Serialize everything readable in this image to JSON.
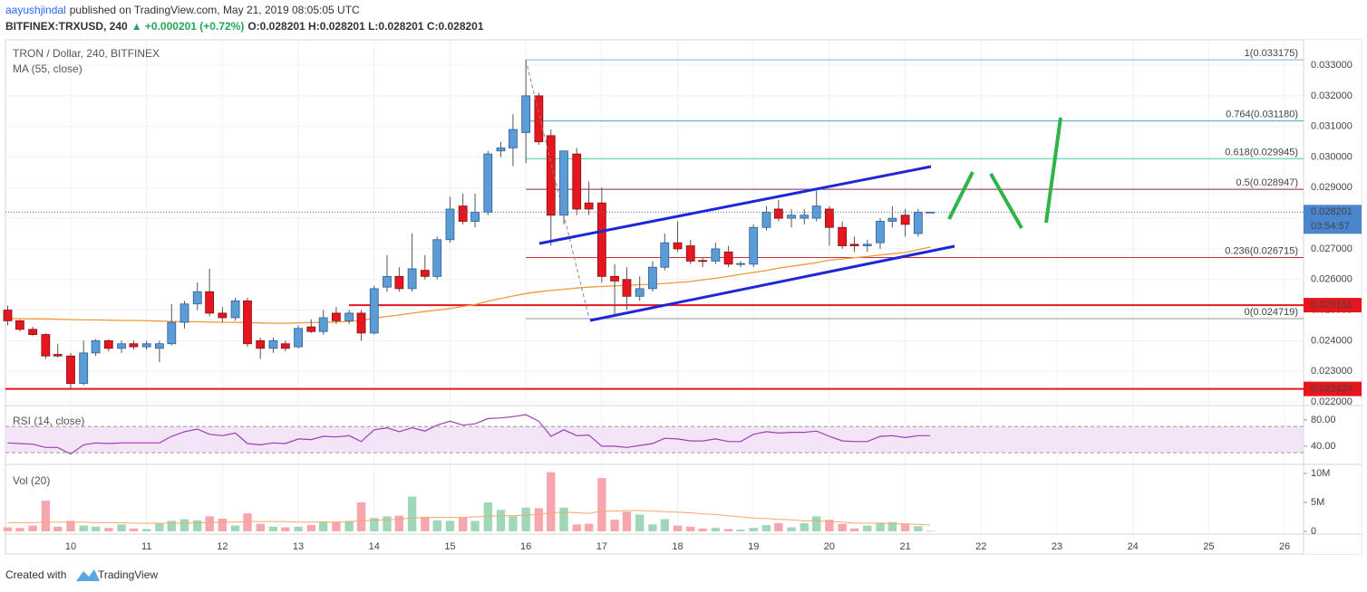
{
  "header": {
    "author": "aayushjindal",
    "published": "published on TradingView.com, May 21, 2019 08:05:05 UTC",
    "symbol": "BITFINEX:TRXUSD, 240",
    "change": "▲ +0.000201 (+0.72%)",
    "ohlc": "O:0.028201 H:0.028201 L:0.028201 C:0.028201"
  },
  "footer": {
    "created": "Created with",
    "brand": "TradingView"
  },
  "chart_data": {
    "type": "candlestick",
    "title": "TRON / Dollar, 240, BITFINEX",
    "up_color": "#5b9cd6",
    "down_color": "#e5161d",
    "grid": true,
    "x": [
      9.17,
      9.33,
      9.5,
      9.67,
      9.83,
      10,
      10.17,
      10.33,
      10.5,
      10.67,
      10.83,
      11,
      11.17,
      11.33,
      11.5,
      11.67,
      11.83,
      12,
      12.17,
      12.33,
      12.5,
      12.67,
      12.83,
      13,
      13.17,
      13.33,
      13.5,
      13.67,
      13.83,
      14,
      14.17,
      14.33,
      14.5,
      14.67,
      14.83,
      15,
      15.17,
      15.33,
      15.5,
      15.67,
      15.83,
      16,
      16.17,
      16.33,
      16.5,
      16.67,
      16.83,
      17,
      17.17,
      17.33,
      17.5,
      17.67,
      17.83,
      18,
      18.17,
      18.33,
      18.5,
      18.67,
      18.83,
      19,
      19.17,
      19.33,
      19.5,
      19.67,
      19.83,
      20,
      20.17,
      20.33,
      20.5,
      20.67,
      20.83,
      21,
      21.17,
      21.33
    ],
    "open": [
      0.025,
      0.02465,
      0.02437,
      0.0242,
      0.02355,
      0.0235,
      0.0226,
      0.0236,
      0.024,
      0.02375,
      0.0239,
      0.0238,
      0.02375,
      0.0239,
      0.0246,
      0.0252,
      0.0256,
      0.0249,
      0.02475,
      0.0253,
      0.024,
      0.02375,
      0.0239,
      0.0238,
      0.02445,
      0.0243,
      0.0249,
      0.02465,
      0.0249,
      0.02425,
      0.02575,
      0.0261,
      0.0257,
      0.0263,
      0.0261,
      0.0273,
      0.0284,
      0.0279,
      0.0282,
      0.0302,
      0.0303,
      0.0308,
      0.032,
      0.0307,
      0.0281,
      0.0301,
      0.0285,
      0.0285,
      0.0261,
      0.026,
      0.02545,
      0.0257,
      0.0264,
      0.0272,
      0.0271,
      0.02662,
      0.0266,
      0.0269,
      0.0265,
      0.0265,
      0.0277,
      0.0283,
      0.028,
      0.028,
      0.028,
      0.0283,
      0.0277,
      0.02715,
      0.0271,
      0.0272,
      0.0279,
      0.0281,
      0.0275,
      0.028201
    ],
    "high": [
      0.02515,
      0.0247,
      0.02445,
      0.02425,
      0.0239,
      0.0236,
      0.024,
      0.02405,
      0.02405,
      0.024,
      0.024,
      0.024,
      0.024,
      0.0252,
      0.0253,
      0.0259,
      0.02635,
      0.0251,
      0.0254,
      0.0254,
      0.0241,
      0.0241,
      0.024,
      0.0245,
      0.0247,
      0.025,
      0.0251,
      0.025,
      0.025,
      0.0258,
      0.0268,
      0.0264,
      0.0275,
      0.0268,
      0.0274,
      0.0287,
      0.0288,
      0.0288,
      0.0302,
      0.0305,
      0.0314,
      0.03318,
      0.0321,
      0.0309,
      0.0302,
      0.0303,
      0.0292,
      0.029,
      0.0265,
      0.0264,
      0.0261,
      0.0266,
      0.0275,
      0.0279,
      0.0273,
      0.0267,
      0.0272,
      0.0271,
      0.0266,
      0.0278,
      0.0284,
      0.0286,
      0.0283,
      0.0283,
      0.0289,
      0.0284,
      0.0279,
      0.0274,
      0.0273,
      0.028,
      0.0284,
      0.0283,
      0.0283,
      0.028201
    ],
    "low": [
      0.0245,
      0.0243,
      0.02415,
      0.0234,
      0.02345,
      0.02245,
      0.02255,
      0.0235,
      0.02365,
      0.0236,
      0.0237,
      0.0237,
      0.0233,
      0.02385,
      0.0244,
      0.025,
      0.0248,
      0.0246,
      0.02465,
      0.0238,
      0.0234,
      0.0236,
      0.02365,
      0.02375,
      0.02425,
      0.0242,
      0.02455,
      0.02455,
      0.024,
      0.0242,
      0.0256,
      0.0256,
      0.0256,
      0.026,
      0.026,
      0.0272,
      0.0278,
      0.0277,
      0.0281,
      0.03,
      0.0297,
      0.0298,
      0.0304,
      0.0271,
      0.0278,
      0.0281,
      0.0281,
      0.0259,
      0.0248,
      0.025,
      0.0253,
      0.0256,
      0.0263,
      0.0269,
      0.0265,
      0.0264,
      0.0265,
      0.0264,
      0.0264,
      0.0264,
      0.0276,
      0.0279,
      0.0277,
      0.0278,
      0.0279,
      0.0271,
      0.027,
      0.0269,
      0.0269,
      0.027,
      0.0277,
      0.0274,
      0.0274,
      0.028201
    ],
    "close": [
      0.02465,
      0.02437,
      0.0242,
      0.0235,
      0.0235,
      0.0226,
      0.0236,
      0.024,
      0.02375,
      0.0239,
      0.0238,
      0.0239,
      0.0239,
      0.0246,
      0.0252,
      0.0256,
      0.0249,
      0.02475,
      0.0253,
      0.0239,
      0.02375,
      0.024,
      0.02375,
      0.0244,
      0.0243,
      0.02475,
      0.02465,
      0.0249,
      0.02425,
      0.0257,
      0.0261,
      0.0257,
      0.02635,
      0.0261,
      0.0273,
      0.0283,
      0.0279,
      0.0282,
      0.0301,
      0.0303,
      0.0309,
      0.032,
      0.0305,
      0.0281,
      0.0302,
      0.0283,
      0.0283,
      0.0261,
      0.02595,
      0.02545,
      0.0257,
      0.0264,
      0.0272,
      0.027,
      0.0266,
      0.0266,
      0.027,
      0.0265,
      0.02652,
      0.0277,
      0.0282,
      0.028,
      0.0281,
      0.0281,
      0.0284,
      0.0277,
      0.0271,
      0.0271,
      0.02715,
      0.0279,
      0.028,
      0.0278,
      0.0282,
      0.028201
    ],
    "xlim": [
      9.14,
      26.25
    ],
    "xticks": [
      10,
      11,
      12,
      13,
      14,
      15,
      16,
      17,
      18,
      19,
      20,
      21,
      22,
      23,
      24,
      25,
      26
    ],
    "ylim": [
      0.02194,
      0.03383
    ],
    "yticks": [
      {
        "value": 0.022,
        "label": "0.022000"
      },
      {
        "value": 0.023,
        "label": "0.023000"
      },
      {
        "value": 0.024,
        "label": "0.024000"
      },
      {
        "value": 0.025,
        "label": "0.025000"
      },
      {
        "value": 0.026,
        "label": "0.026000"
      },
      {
        "value": 0.027,
        "label": "0.027000"
      },
      {
        "value": 0.028,
        "label": "0.028000"
      },
      {
        "value": 0.029,
        "label": "0.029000"
      },
      {
        "value": 0.03,
        "label": "0.030000"
      },
      {
        "value": 0.031,
        "label": "0.031000"
      },
      {
        "value": 0.032,
        "label": "0.032000"
      },
      {
        "value": 0.033,
        "label": "0.033000"
      }
    ],
    "countdown": "03:54:57",
    "levels": [
      {
        "value": 0.025161,
        "color": "#e5161d"
      },
      {
        "value": 0.022424,
        "color": "#e5161d"
      }
    ],
    "fib": [
      {
        "label": "1(0.033175)",
        "value": 0.033175,
        "color": "#7fb3d5"
      },
      {
        "label": "0.764(0.031180)",
        "value": 0.03118,
        "color": "#3fa7d6"
      },
      {
        "label": "0.618(0.029945)",
        "value": 0.029945,
        "color": "#4cd0a0"
      },
      {
        "label": "0.5(0.028947)",
        "value": 0.028947,
        "color": "#8b2846"
      },
      {
        "label": "0.236(0.026715)",
        "value": 0.026715,
        "color": "#c0303d"
      },
      {
        "label": "0(0.024719)",
        "value": 0.024719,
        "color": "#9a9a9a"
      }
    ],
    "ma": {
      "name": "MA (55, close)",
      "color": "#f2993a",
      "values": [
        0.02472,
        0.02472,
        0.02471,
        0.02471,
        0.0247,
        0.02469,
        0.02468,
        0.02468,
        0.02467,
        0.02466,
        0.02466,
        0.02465,
        0.02464,
        0.02463,
        0.02462,
        0.02462,
        0.02461,
        0.0246,
        0.0246,
        0.02459,
        0.02458,
        0.02457,
        0.02457,
        0.02458,
        0.02459,
        0.0246,
        0.02461,
        0.02463,
        0.02466,
        0.02474,
        0.02479,
        0.02484,
        0.0249,
        0.02495,
        0.025,
        0.02505,
        0.02512,
        0.02518,
        0.02529,
        0.02538,
        0.02546,
        0.02554,
        0.0256,
        0.02564,
        0.02568,
        0.02572,
        0.02575,
        0.02577,
        0.02579,
        0.02581,
        0.02583,
        0.02584,
        0.02587,
        0.0259,
        0.02593,
        0.02599,
        0.02604,
        0.0261,
        0.02617,
        0.02623,
        0.02629,
        0.02637,
        0.02643,
        0.02649,
        0.02655,
        0.02663,
        0.02667,
        0.02671,
        0.02675,
        0.0268,
        0.02684,
        0.02688,
        0.02697,
        0.02706
      ]
    },
    "rsi": {
      "name": "RSI (14, close)",
      "color": "#9b3fb5",
      "band": [
        30,
        70
      ],
      "ylim": [
        15,
        95
      ],
      "yticks": [
        {
          "value": 80,
          "label": "80.00"
        },
        {
          "value": 40,
          "label": "40.00"
        }
      ],
      "values": [
        45,
        44,
        43,
        38,
        38,
        28,
        42,
        45,
        44,
        45,
        45,
        45,
        45,
        55,
        62,
        66,
        58,
        56,
        60,
        44,
        42,
        45,
        44,
        51,
        50,
        55,
        54,
        56,
        47,
        65,
        68,
        62,
        68,
        63,
        72,
        78,
        72,
        74,
        82,
        83,
        85,
        88,
        78,
        55,
        65,
        56,
        57,
        40,
        40,
        38,
        41,
        44,
        52,
        51,
        48,
        48,
        51,
        47,
        47,
        58,
        62,
        60,
        61,
        61,
        63,
        55,
        48,
        47,
        47,
        55,
        56,
        53,
        56,
        56
      ]
    },
    "volume": {
      "name": "Vol (20)",
      "up_color": "#9fd8b8",
      "down_color": "#f6a6ac",
      "ma_color": "#f5a86a",
      "ylim": [
        -0.47,
        11.25
      ],
      "yticks": [
        {
          "value": 10,
          "label": "10M"
        },
        {
          "value": 5,
          "label": "5M"
        },
        0
      ],
      "values": [
        0.7,
        0.6,
        1.0,
        5.3,
        0.8,
        1.8,
        1.0,
        0.8,
        0.6,
        1.2,
        0.5,
        0.4,
        1.3,
        1.8,
        2.1,
        1.9,
        2.6,
        2.2,
        1.0,
        3.1,
        1.3,
        0.8,
        0.7,
        0.8,
        1.1,
        1.7,
        1.6,
        1.8,
        5.0,
        2.3,
        2.6,
        2.7,
        6.0,
        2.5,
        1.9,
        1.8,
        2.4,
        1.8,
        5.0,
        3.7,
        2.6,
        4.1,
        4.0,
        10.2,
        4.1,
        1.2,
        1.3,
        9.2,
        2.0,
        3.4,
        2.9,
        1.2,
        2.1,
        1.0,
        0.8,
        0.5,
        0.6,
        0.4,
        0.3,
        0.6,
        1.1,
        1.4,
        0.7,
        1.4,
        2.6,
        2.0,
        1.3,
        0.5,
        1.0,
        1.5,
        1.6,
        1.3,
        0.9,
        0.1
      ],
      "ma": [
        1.5,
        1.5,
        1.5,
        1.6,
        1.6,
        1.6,
        1.6,
        1.5,
        1.5,
        1.5,
        1.4,
        1.4,
        1.4,
        1.4,
        1.4,
        1.5,
        1.5,
        1.6,
        1.6,
        1.7,
        1.7,
        1.7,
        1.7,
        1.6,
        1.6,
        1.6,
        1.6,
        1.7,
        1.8,
        1.9,
        2.0,
        2.1,
        2.3,
        2.4,
        2.4,
        2.4,
        2.4,
        2.5,
        2.6,
        2.7,
        2.7,
        2.8,
        2.9,
        3.2,
        3.3,
        3.2,
        3.1,
        3.5,
        3.5,
        3.6,
        3.6,
        3.5,
        3.4,
        3.3,
        3.2,
        3.0,
        2.9,
        2.7,
        2.5,
        2.3,
        2.2,
        2.1,
        2.0,
        1.8,
        1.8,
        1.7,
        1.6,
        1.4,
        1.4,
        1.4,
        1.3,
        1.3,
        1.2,
        1.1
      ]
    }
  }
}
